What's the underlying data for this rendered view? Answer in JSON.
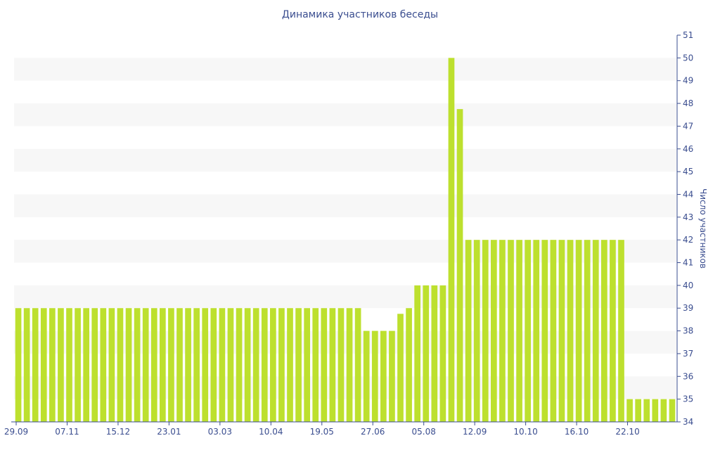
{
  "chart_data": {
    "type": "bar",
    "title": "Динамика участников беседы",
    "ylabel": "Число участников",
    "xlabel": "",
    "ylim": [
      34,
      51
    ],
    "yticks": [
      34,
      35,
      36,
      37,
      38,
      39,
      40,
      41,
      42,
      43,
      44,
      45,
      46,
      47,
      48,
      49,
      50,
      51
    ],
    "xtick_labels": [
      "29.09",
      "07.11",
      "15.12",
      "23.01",
      "03.03",
      "10.04",
      "19.05",
      "27.06",
      "05.08",
      "12.09",
      "10.10",
      "16.10",
      "22.10"
    ],
    "xtick_positions": [
      0,
      6,
      12,
      18,
      24,
      30,
      36,
      42,
      48,
      54,
      60,
      66,
      72
    ],
    "values": [
      39,
      39,
      39,
      39,
      39,
      39,
      39,
      39,
      39,
      39,
      39,
      39,
      39,
      39,
      39,
      39,
      39,
      39,
      39,
      39,
      39,
      39,
      39,
      39,
      39,
      39,
      39,
      39,
      39,
      39,
      39,
      39,
      39,
      39,
      39,
      39,
      39,
      39,
      39,
      39,
      39,
      38,
      38,
      38,
      38,
      38.75,
      39,
      40,
      40,
      40,
      40,
      50,
      47.75,
      42,
      42,
      42,
      42,
      42,
      42,
      42,
      42,
      42,
      42,
      42,
      42,
      42,
      42,
      42,
      42,
      42,
      42,
      42,
      35,
      35,
      35,
      35,
      35,
      35
    ],
    "bar_color": "#bde02e",
    "band_color": "#f7f7f7",
    "axis_color": "#3a4d8f",
    "grid": "alternating-bands",
    "y_axis_side": "right"
  }
}
